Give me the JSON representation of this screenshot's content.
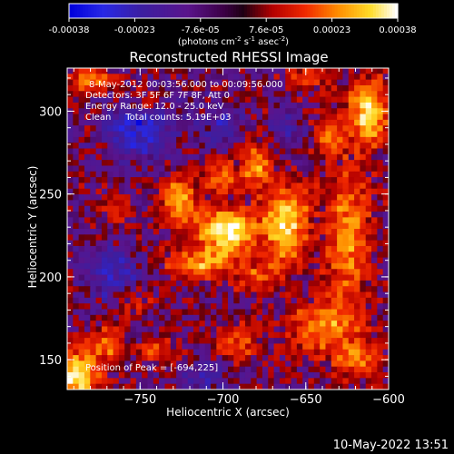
{
  "chart_data": {
    "type": "heatmap",
    "title": "Reconstructed RHESSI Image",
    "xlabel": "Heliocentric X (arcsec)",
    "ylabel": "Heliocentric Y (arcsec)",
    "xlim": [
      -794,
      -600
    ],
    "ylim": [
      132,
      326
    ],
    "xticks": [
      -750,
      -700,
      -650,
      -600
    ],
    "yticks": [
      150,
      200,
      250,
      300
    ],
    "colorscale": "RHESSI flux (blue-purple-red-yellow-white)",
    "colorbar": {
      "ticks": [
        "-0.00038",
        "-0.00023",
        "-7.6e-05",
        "7.6e-05",
        "0.00023",
        "0.00038"
      ],
      "label_parts": [
        "(photons cm",
        "-2",
        " s",
        "-1",
        " asec",
        "-2",
        ")"
      ]
    },
    "annotations": {
      "time": "8-May-2012 00:03:56.000 to 00:09:56.000",
      "detectors": "Detectors: 3F 5F 6F 7F 8F, Att 0",
      "energy": "Energy Range: 12.0 - 25.0 keV",
      "clean": "Clean     Total counts: 5.19E+03",
      "peak": "Position of Peak = [-694,225]"
    },
    "peak": {
      "x": -694,
      "y": 225
    },
    "sources": [
      {
        "x": -697,
        "y": 228,
        "sx": 12,
        "sy": 9,
        "amp": 1.0
      },
      {
        "x": -662,
        "y": 232,
        "sx": 9,
        "sy": 16,
        "amp": 0.85
      },
      {
        "x": -727,
        "y": 245,
        "sx": 7,
        "sy": 10,
        "amp": 0.7
      },
      {
        "x": -700,
        "y": 260,
        "sx": 8,
        "sy": 6,
        "amp": 0.55
      },
      {
        "x": -680,
        "y": 268,
        "sx": 6,
        "sy": 10,
        "amp": 0.55
      },
      {
        "x": -715,
        "y": 208,
        "sx": 14,
        "sy": 7,
        "amp": 0.6
      },
      {
        "x": -680,
        "y": 200,
        "sx": 9,
        "sy": 6,
        "amp": 0.45
      },
      {
        "x": -612,
        "y": 300,
        "sx": 8,
        "sy": 14,
        "amp": 0.8
      },
      {
        "x": -635,
        "y": 287,
        "sx": 6,
        "sy": 8,
        "amp": 0.45
      },
      {
        "x": -625,
        "y": 225,
        "sx": 10,
        "sy": 30,
        "amp": 0.55
      },
      {
        "x": -640,
        "y": 170,
        "sx": 14,
        "sy": 10,
        "amp": 0.55
      },
      {
        "x": -620,
        "y": 150,
        "sx": 10,
        "sy": 8,
        "amp": 0.5
      },
      {
        "x": -790,
        "y": 140,
        "sx": 10,
        "sy": 10,
        "amp": 0.9
      },
      {
        "x": -770,
        "y": 160,
        "sx": 8,
        "sy": 8,
        "amp": 0.45
      },
      {
        "x": -755,
        "y": 185,
        "sx": 8,
        "sy": 5,
        "amp": 0.4
      },
      {
        "x": -780,
        "y": 318,
        "sx": 10,
        "sy": 6,
        "amp": 0.45
      },
      {
        "x": -748,
        "y": 305,
        "sx": 6,
        "sy": 5,
        "amp": 0.35
      },
      {
        "x": -690,
        "y": 160,
        "sx": 10,
        "sy": 8,
        "amp": 0.4
      },
      {
        "x": -765,
        "y": 240,
        "sx": 6,
        "sy": 6,
        "amp": 0.3
      },
      {
        "x": -740,
        "y": 155,
        "sx": 8,
        "sy": 6,
        "amp": 0.35
      },
      {
        "x": -650,
        "y": 320,
        "sx": 10,
        "sy": 5,
        "amp": 0.35
      }
    ],
    "negative_regions": [
      {
        "x": -750,
        "y": 290,
        "sx": 14,
        "sy": 12,
        "amp": 0.5
      },
      {
        "x": -765,
        "y": 200,
        "sx": 12,
        "sy": 12,
        "amp": 0.35
      },
      {
        "x": -700,
        "y": 290,
        "sx": 10,
        "sy": 8,
        "amp": 0.3
      },
      {
        "x": -660,
        "y": 290,
        "sx": 8,
        "sy": 7,
        "amp": 0.25
      },
      {
        "x": -710,
        "y": 140,
        "sx": 10,
        "sy": 8,
        "amp": 0.3
      }
    ]
  },
  "footer": {
    "timestamp": "10-May-2022 13:51"
  }
}
